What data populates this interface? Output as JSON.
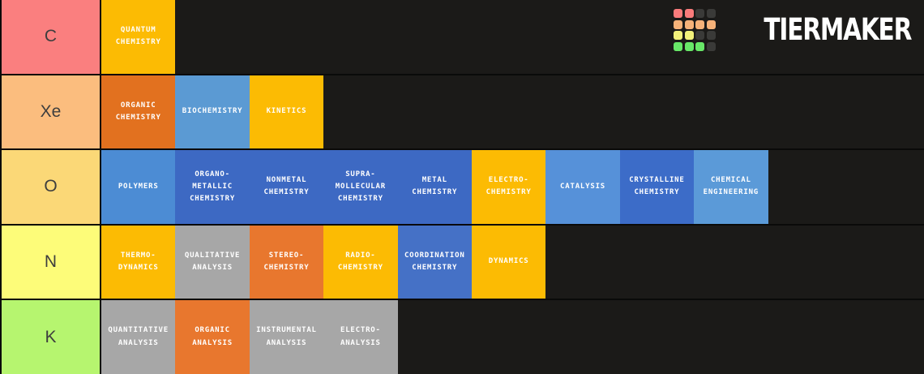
{
  "page": {
    "background": "#1b1a18",
    "border_color": "#0a0a09"
  },
  "logo": {
    "text": "TIERMAKER",
    "cell_colors": {
      "red": "#f97b7b",
      "orange": "#f6b279",
      "yellow": "#f2f17a",
      "green": "#68e868",
      "dark": "#3a3a38"
    },
    "grid": [
      [
        "red",
        "red",
        "dark",
        "dark"
      ],
      [
        "orange",
        "orange",
        "orange",
        "orange"
      ],
      [
        "yellow",
        "yellow",
        "dark",
        "dark"
      ],
      [
        "green",
        "green",
        "green",
        "dark"
      ]
    ]
  },
  "tiers": [
    {
      "label": "C",
      "label_color": "#fa7f7f",
      "tiles": [
        {
          "text": "QUANTUM\nCHEMISTRY",
          "color": "#fcbb03"
        }
      ]
    },
    {
      "label": "Xe",
      "label_color": "#fbbd7e",
      "tiles": [
        {
          "text": "ORGANIC\nCHEMISTRY",
          "color": "#e2711f"
        },
        {
          "text": "BIOCHEMISTRY",
          "color": "#5b9ad3"
        },
        {
          "text": "KINETICS",
          "color": "#fcbb03"
        }
      ]
    },
    {
      "label": "O",
      "label_color": "#fbd877",
      "tiles": [
        {
          "text": "POLYMERS",
          "color": "#4c8cd4"
        },
        {
          "text": "ORGANO-\nMETALLIC\nCHEMISTRY",
          "color": "#3d69c3"
        },
        {
          "text": "NONMETAL\nCHEMISTRY",
          "color": "#3d69c3"
        },
        {
          "text": "SUPRA-\nMOLLECULAR\nCHEMISTRY",
          "color": "#3d69c3"
        },
        {
          "text": "METAL\nCHEMISTRY",
          "color": "#3d69c3"
        },
        {
          "text": "ELECTRO-\nCHEMISTRY",
          "color": "#fcbb03"
        },
        {
          "text": "CATALYSIS",
          "color": "#5691d9"
        },
        {
          "text": "CRYSTALLINE\nCHEMISTRY",
          "color": "#3c6cc8"
        },
        {
          "text": "CHEMICAL\nENGINEERING",
          "color": "#5b9ad8"
        }
      ]
    },
    {
      "label": "N",
      "label_color": "#fdfc79",
      "tiles": [
        {
          "text": "THERMO-\nDYNAMICS",
          "color": "#fcbb03"
        },
        {
          "text": "QUALITATIVE\nANALYSIS",
          "color": "#a7a7a7"
        },
        {
          "text": "STEREO-\nCHEMISTRY",
          "color": "#e8772e"
        },
        {
          "text": "RADIO-\nCHEMISTRY",
          "color": "#fcbb03"
        },
        {
          "text": "COORDINATION\nCHEMISTRY",
          "color": "#4571c6"
        },
        {
          "text": "DYNAMICS",
          "color": "#fcbb03"
        }
      ]
    },
    {
      "label": "K",
      "label_color": "#b6f56f",
      "tiles": [
        {
          "text": "QUANTITATIVE\nANALYSIS",
          "color": "#a7a7a7"
        },
        {
          "text": "ORGANIC\nANALYSIS",
          "color": "#e8772e"
        },
        {
          "text": "INSTRUMENTAL\nANALYSIS",
          "color": "#a7a7a7"
        },
        {
          "text": "ELECTRO-\nANALYSIS",
          "color": "#a7a7a7"
        }
      ]
    }
  ]
}
